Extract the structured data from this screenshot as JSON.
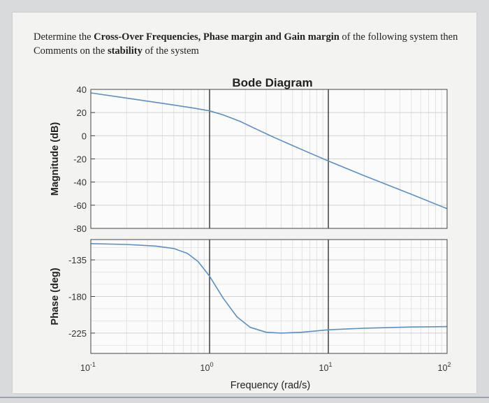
{
  "question": {
    "part1": "Determine the ",
    "bold1": "Cross-Over Frequencies, Phase margin and Gain margin",
    "part2": " of the following system then Comments on the ",
    "bold2": "stability",
    "part3": " of the system"
  },
  "chart_data": {
    "type": "line",
    "title": "Bode Diagram",
    "xlabel": "Frequency (rad/s)",
    "xscale": "log",
    "xlim": [
      0.1,
      100
    ],
    "xticks": [
      {
        "base": "10",
        "exp": "-1",
        "value": 0.1
      },
      {
        "base": "10",
        "exp": "0",
        "value": 1
      },
      {
        "base": "10",
        "exp": "1",
        "value": 10
      },
      {
        "base": "10",
        "exp": "2",
        "value": 100
      }
    ],
    "grid": true,
    "subplots": [
      {
        "name": "magnitude",
        "ylabel": "Magnitude (dB)",
        "ylim": [
          -80,
          40
        ],
        "yticks": [
          40,
          20,
          0,
          -20,
          -40,
          -60,
          -80
        ],
        "series": [
          {
            "color": "#5b8fc6",
            "x": [
              0.1,
              0.2,
              0.4,
              0.7,
              1.0,
              1.3,
              1.8,
              2.5,
              3.5,
              5,
              7,
              10,
              20,
              50,
              100
            ],
            "y": [
              37,
              32.5,
              28,
              24.2,
              21.5,
              18,
              12.5,
              5.5,
              -1.5,
              -8.5,
              -15,
              -21.8,
              -34.5,
              -50.5,
              -63
            ]
          }
        ]
      },
      {
        "name": "phase",
        "ylabel": "Phase (deg)",
        "ylim": [
          -250,
          -110
        ],
        "yticks": [
          -135,
          -180,
          -225
        ],
        "series": [
          {
            "color": "#5b8fc6",
            "x": [
              0.1,
              0.2,
              0.35,
              0.5,
              0.65,
              0.8,
              1.0,
              1.3,
              1.7,
              2.2,
              3,
              4,
              6,
              10,
              20,
              50,
              100
            ],
            "y": [
              -115,
              -116,
              -118,
              -121,
              -127,
              -137,
              -155,
              -182,
              -205,
              -218,
              -224,
              -225,
              -224,
              -221,
              -219,
              -217.5,
              -217
            ]
          }
        ]
      }
    ],
    "markers_x": [
      1,
      10
    ]
  }
}
